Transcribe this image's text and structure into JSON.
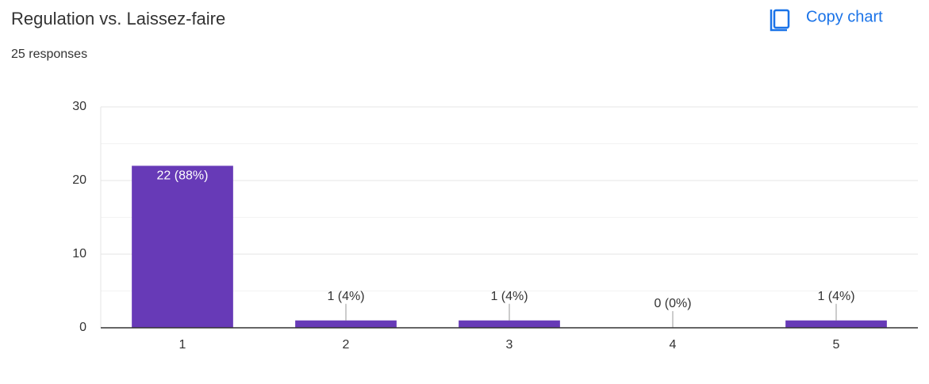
{
  "chart_data": {
    "type": "bar",
    "title": "Regulation vs. Laissez-faire",
    "subtitle": "25 responses",
    "button": "Copy chart",
    "categories": [
      "1",
      "2",
      "3",
      "4",
      "5"
    ],
    "values": [
      22,
      1,
      1,
      0,
      1
    ],
    "value_labels": [
      "22 (88%)",
      "1 (4%)",
      "1 (4%)",
      "0 (0%)",
      "1 (4%)"
    ],
    "color": "#673ab7",
    "ylim": [
      0,
      30
    ],
    "yticks": [
      0,
      10,
      20,
      30
    ],
    "minor_gridlines": [
      5,
      15,
      25
    ],
    "grid": true
  }
}
